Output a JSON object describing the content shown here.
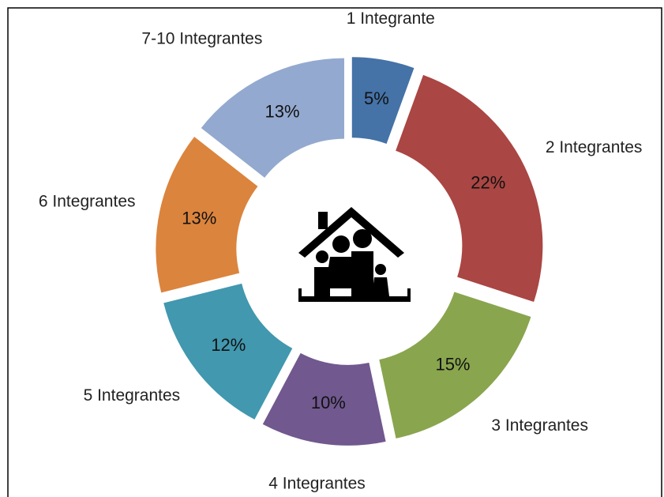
{
  "chart_data": {
    "type": "donut",
    "categories": [
      "1 Integrante",
      "2 Integrantes",
      "3 Integrantes",
      "4 Integrantes",
      "5 Integrantes",
      "6 Integrantes",
      "7-10 Integrantes"
    ],
    "values": [
      5,
      22,
      15,
      10,
      12,
      13,
      13
    ],
    "value_labels": [
      "5%",
      "22%",
      "15%",
      "10%",
      "12%",
      "13%",
      "13%"
    ],
    "colors": [
      "#4572a7",
      "#aa4643",
      "#89a54e",
      "#71588f",
      "#4198af",
      "#db843d",
      "#93a9cf"
    ]
  }
}
